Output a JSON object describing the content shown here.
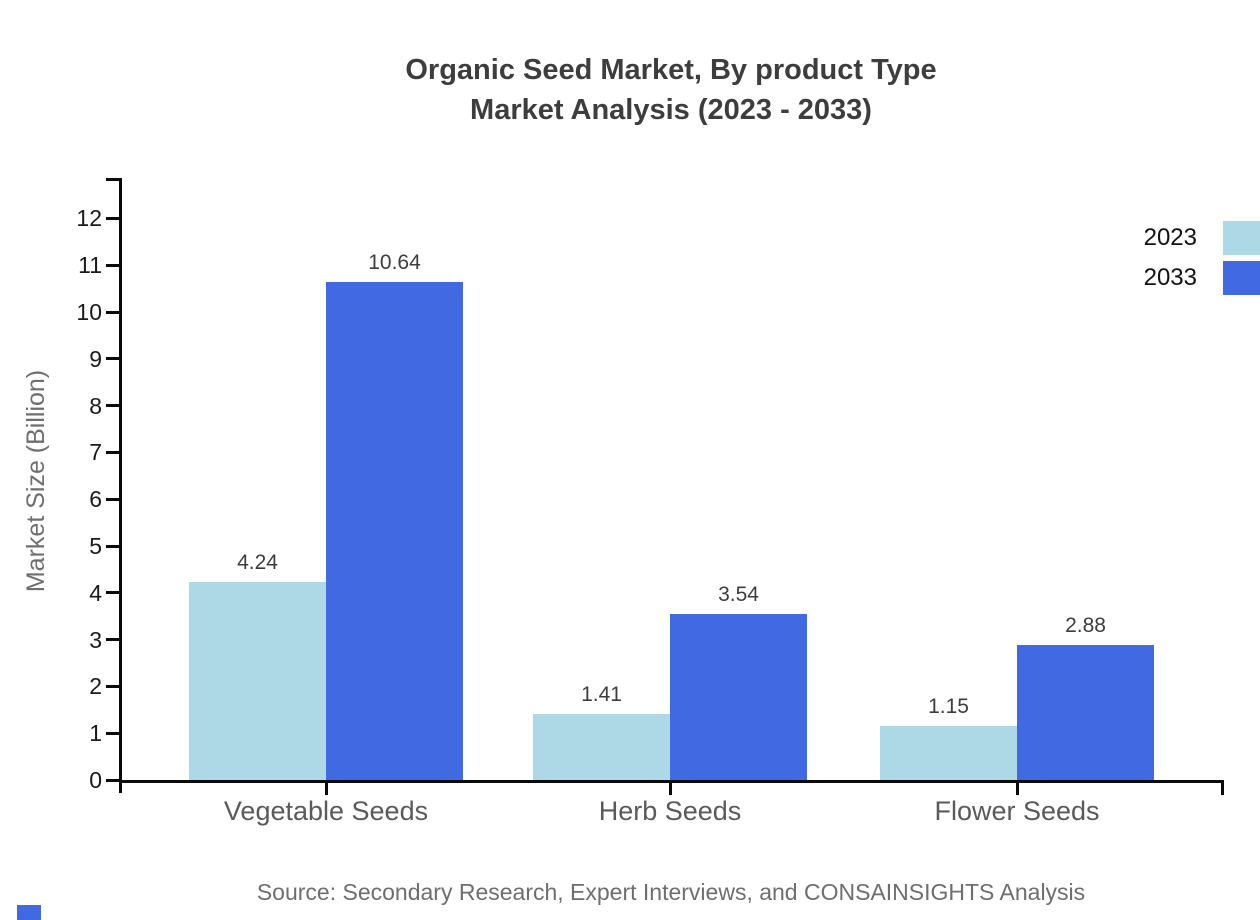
{
  "title": {
    "line1": "Organic Seed Market, By product Type",
    "line2": "Market Analysis (2023 - 2033)"
  },
  "legend": [
    {
      "label": "2023",
      "color": "#ADD8E6"
    },
    {
      "label": "2033",
      "color": "#4169E1"
    }
  ],
  "source": "Source: Secondary Research, Expert Interviews, and CONSAINSIGHTS Analysis",
  "chart_data": {
    "type": "bar",
    "title": "Organic Seed Market, By product Type - Market Analysis (2023 - 2033)",
    "categories": [
      "Vegetable Seeds",
      "Herb Seeds",
      "Flower Seeds"
    ],
    "series": [
      {
        "name": "2023",
        "color": "#ADD8E6",
        "values": [
          4.24,
          1.41,
          1.15
        ]
      },
      {
        "name": "2033",
        "color": "#4169E1",
        "values": [
          10.64,
          3.54,
          2.88
        ]
      }
    ],
    "xlabel": "",
    "ylabel": "Market Size (Billion)",
    "ylim": [
      0,
      12
    ],
    "yticks": [
      0,
      1,
      2,
      3,
      4,
      5,
      6,
      7,
      8,
      9,
      10,
      11,
      12
    ],
    "grid": false,
    "legend_position": "top-right",
    "value_labels_shown": true
  },
  "colors": {
    "series_2023": "#ADD8E6",
    "series_2033": "#4169E1",
    "axis": "#0a0a0a",
    "title_text": "#3d3d3d",
    "tick_label_text": "#1a1a1a",
    "category_label_text": "#5a5a5a",
    "value_label_text": "#3d3d3d",
    "muted_text": "#6e6e6e",
    "brand_mark": "#4169E1"
  }
}
